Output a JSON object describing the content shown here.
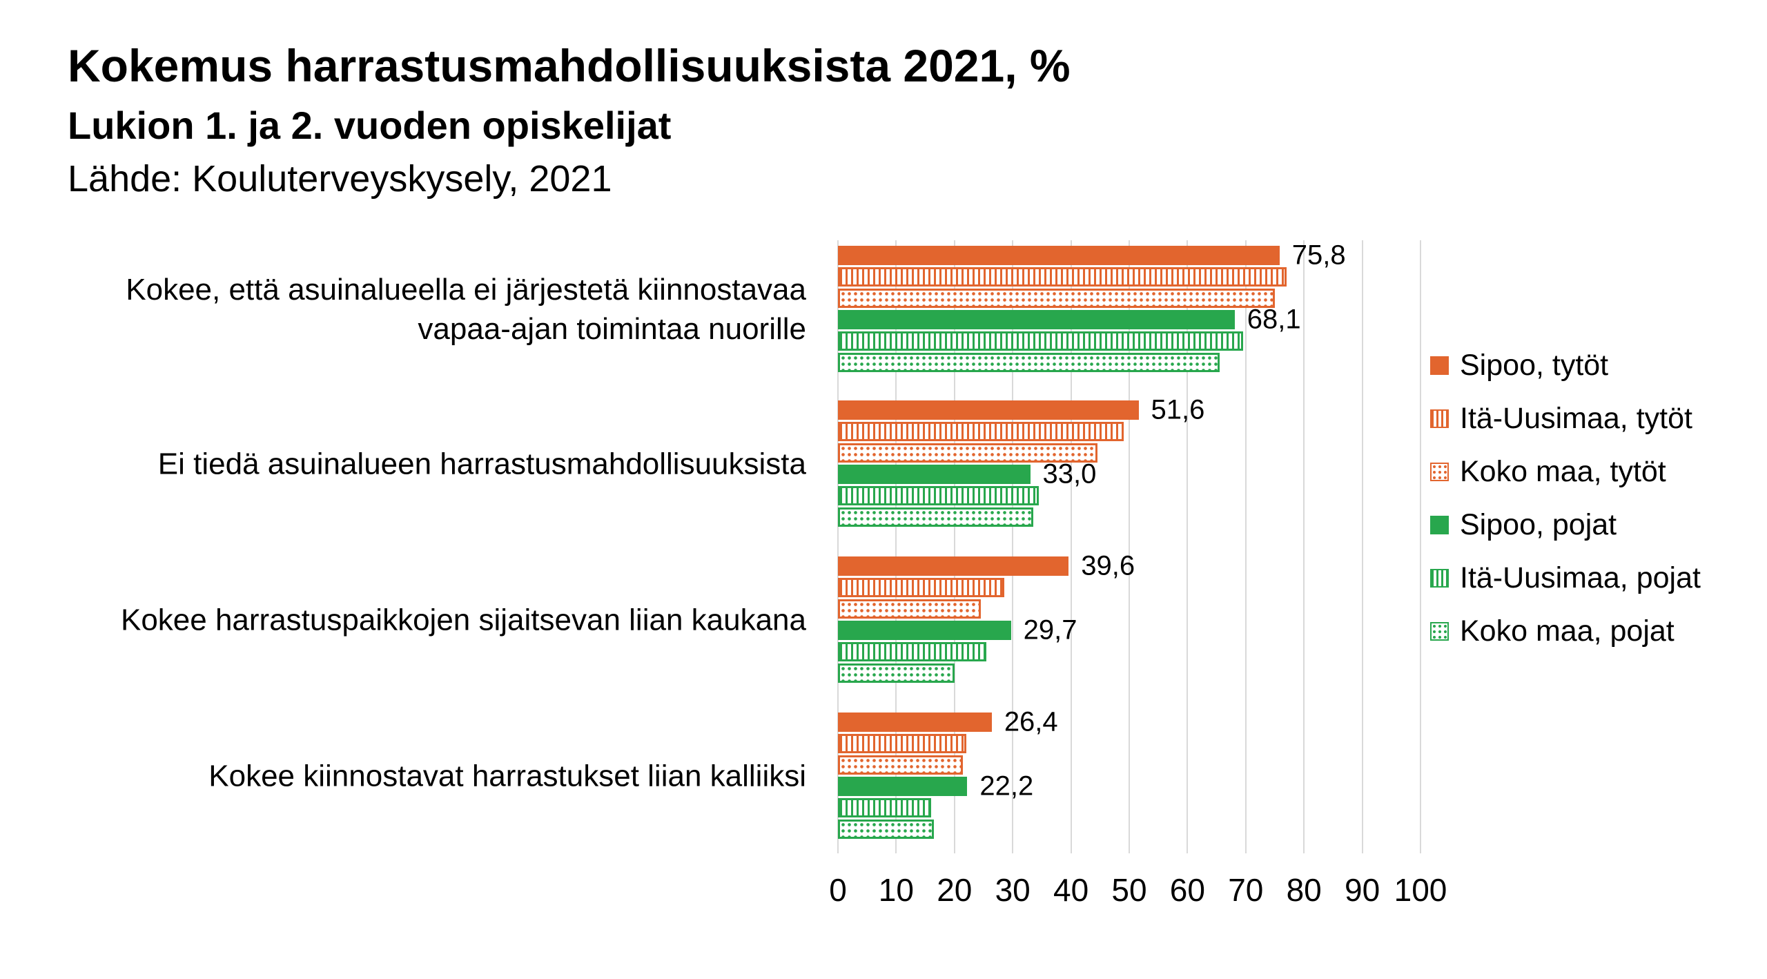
{
  "header": {
    "title": "Kokemus harrastusmahdollisuuksista 2021, %",
    "subtitle": "Lukion 1. ja 2. vuoden opiskelijat",
    "source": "Lähde: Kouluterveyskysely, 2021"
  },
  "colors": {
    "orange": "#E2652E",
    "green": "#28A74D",
    "grid": "#D9D9D9",
    "text": "#000000",
    "background": "#FFFFFF"
  },
  "chart_data": {
    "type": "bar",
    "orientation": "horizontal",
    "title": "Kokemus harrastusmahdollisuuksista 2021, %",
    "subtitle": "Lukion 1. ja 2. vuoden opiskelijat",
    "source": "Lähde: Kouluterveyskysely, 2021",
    "categories": [
      "Kokee, että asuinalueella ei järjestetä kiinnostavaa vapaa-ajan toimintaa nuorille",
      "Ei tiedä asuinalueen harrastusmahdollisuuksista",
      "Kokee harrastuspaikkojen sijaitsevan liian kaukana",
      "Kokee kiinnostavat harrastukset liian kalliiksi"
    ],
    "series": [
      {
        "name": "Sipoo, tytöt",
        "color": "#E2652E",
        "pattern": "solid",
        "values": [
          75.8,
          51.6,
          39.6,
          26.4
        ],
        "labeled": true
      },
      {
        "name": "Itä-Uusimaa, tytöt",
        "color": "#E2652E",
        "pattern": "striped",
        "values": [
          77.0,
          49.0,
          28.5,
          22.0
        ],
        "labeled": false
      },
      {
        "name": "Koko maa, tytöt",
        "color": "#E2652E",
        "pattern": "dotted",
        "values": [
          75.0,
          44.5,
          24.5,
          21.5
        ],
        "labeled": false
      },
      {
        "name": "Sipoo, pojat",
        "color": "#28A74D",
        "pattern": "solid",
        "values": [
          68.1,
          33.0,
          29.7,
          22.2
        ],
        "labeled": true
      },
      {
        "name": "Itä-Uusimaa, pojat",
        "color": "#28A74D",
        "pattern": "striped",
        "values": [
          69.5,
          34.5,
          25.5,
          16.0
        ],
        "labeled": false
      },
      {
        "name": "Koko maa, pojat",
        "color": "#28A74D",
        "pattern": "dotted",
        "values": [
          65.5,
          33.5,
          20.0,
          16.5
        ],
        "labeled": false
      }
    ],
    "data_labels": [
      [
        "75,8",
        "68,1"
      ],
      [
        "51,6",
        "33,0"
      ],
      [
        "39,6",
        "29,7"
      ],
      [
        "26,4",
        "22,2"
      ]
    ],
    "xlabel": "",
    "ylabel": "",
    "xlim": [
      0,
      100
    ],
    "x_ticks": [
      0,
      10,
      20,
      30,
      40,
      50,
      60,
      70,
      80,
      90,
      100
    ],
    "grid": true,
    "legend_position": "right"
  }
}
